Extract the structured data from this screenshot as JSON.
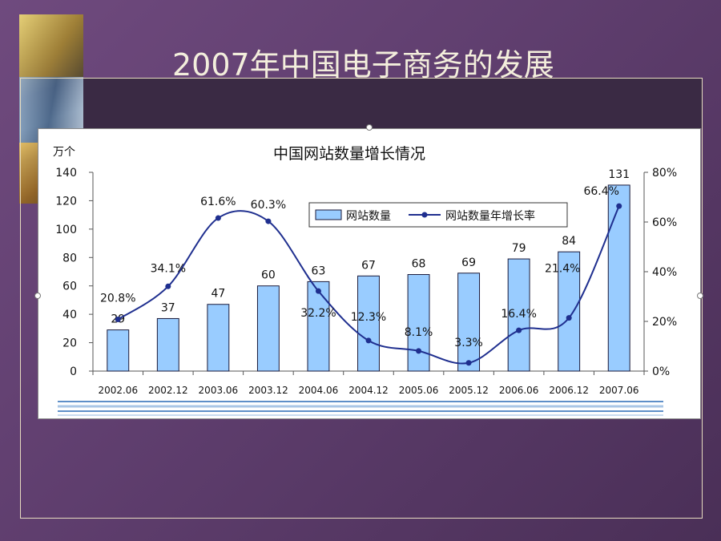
{
  "slide": {
    "title": "2007年中国电子商务的发展"
  },
  "chart_data": {
    "type": "bar",
    "title": "中国网站数量增长情况",
    "y_unit_label": "万个",
    "categories": [
      "2002.06",
      "2002.12",
      "2003.06",
      "2003.12",
      "2004.06",
      "2004.12",
      "2005.06",
      "2005.12",
      "2006.06",
      "2006.12",
      "2007.06"
    ],
    "series": [
      {
        "name": "网站数量",
        "type": "bar",
        "axis": "left",
        "color": "#99ccff",
        "values": [
          29,
          37,
          47,
          60,
          63,
          67,
          68,
          69,
          79,
          84,
          131
        ],
        "labels": [
          "29",
          "37",
          "47",
          "60",
          "63",
          "67",
          "68",
          "69",
          "79",
          "84",
          "131"
        ]
      },
      {
        "name": "网站数量年增长率",
        "type": "line",
        "axis": "right",
        "color": "#1f2f8f",
        "values": [
          20.8,
          34.1,
          61.6,
          60.3,
          32.2,
          12.3,
          8.1,
          3.3,
          16.4,
          21.4,
          66.4
        ],
        "labels": [
          "20.8%",
          "34.1%",
          "61.6%",
          "60.3%",
          "32.2%",
          "12.3%",
          "8.1%",
          "3.3%",
          "16.4%",
          "21.4%",
          "66.4%"
        ]
      }
    ],
    "ylim": [
      0,
      140
    ],
    "yticks": [
      "0",
      "20",
      "40",
      "60",
      "80",
      "100",
      "120",
      "140"
    ],
    "y2lim": [
      0,
      80
    ],
    "y2ticks": [
      "0%",
      "20%",
      "40%",
      "60%",
      "80%"
    ],
    "legend": "top-center",
    "grid": false
  }
}
